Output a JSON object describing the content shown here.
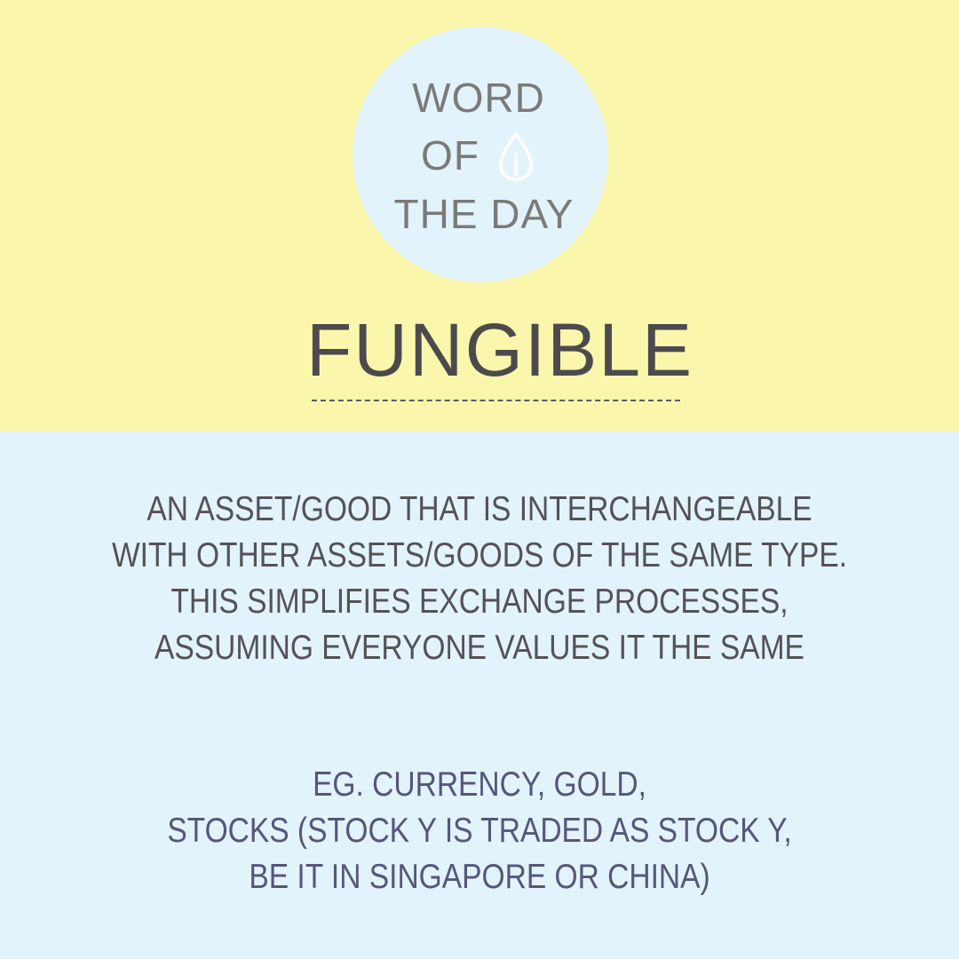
{
  "badge": {
    "line1": "WORD",
    "line2": "OF",
    "line3": "THE DAY",
    "icon": "seed-icon"
  },
  "headword": "FUNGIBLE",
  "definition": {
    "lines": [
      "AN ASSET/GOOD THAT IS INTERCHANGEABLE",
      "WITH OTHER ASSETS/GOODS OF THE SAME TYPE.",
      "THIS SIMPLIFIES EXCHANGE PROCESSES,",
      "ASSUMING EVERYONE VALUES IT THE SAME"
    ]
  },
  "example": {
    "lines": [
      "EG. CURRENCY, GOLD,",
      "STOCKS (STOCK Y IS TRADED AS STOCK Y,",
      "BE IT IN SINGAPORE OR CHINA)"
    ]
  },
  "colors": {
    "top_background": "#faf7ac",
    "bottom_background": "#e3f3fc",
    "badge_text": "#7a7a7a",
    "headword_text": "#4d4a4d",
    "definition_text": "#545257",
    "example_text": "#56567a"
  }
}
